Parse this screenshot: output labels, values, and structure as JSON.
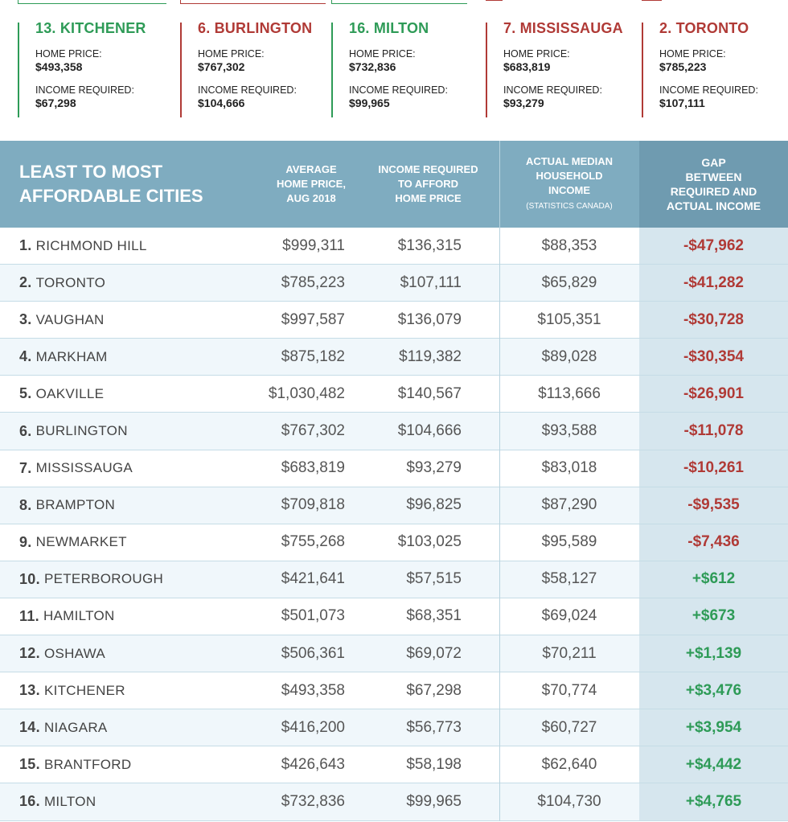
{
  "cards": [
    {
      "title": "13. KITCHENER",
      "home_label": "HOME PRICE:",
      "home": "$493,358",
      "income_label": "INCOME REQUIRED:",
      "income": "$67,298",
      "color": "#2e9b57"
    },
    {
      "title": "6. BURLINGTON",
      "home_label": "HOME PRICE:",
      "home": "$767,302",
      "income_label": "INCOME REQUIRED:",
      "income": "$104,666",
      "color": "#b03a36"
    },
    {
      "title": "16. MILTON",
      "home_label": "HOME PRICE:",
      "home": "$732,836",
      "income_label": "INCOME REQUIRED:",
      "income": "$99,965",
      "color": "#2e9b57"
    },
    {
      "title": "7. MISSISSAUGA",
      "home_label": "HOME PRICE:",
      "home": "$683,819",
      "income_label": "INCOME REQUIRED:",
      "income": "$93,279",
      "color": "#b03a36"
    },
    {
      "title": "2. TORONTO",
      "home_label": "HOME PRICE:",
      "home": "$785,223",
      "income_label": "INCOME REQUIRED:",
      "income": "$107,111",
      "color": "#b03a36"
    }
  ],
  "table": {
    "headers": {
      "city_line1": "LEAST TO MOST",
      "city_line2": "AFFORDABLE CITIES",
      "price_l1": "AVERAGE",
      "price_l2": "HOME PRICE,",
      "price_l3": "AUG 2018",
      "req_l1": "INCOME REQUIRED",
      "req_l2": "TO AFFORD",
      "req_l3": "HOME PRICE",
      "act_l1": "ACTUAL MEDIAN",
      "act_l2": "HOUSEHOLD",
      "act_l3": "INCOME",
      "act_l4": "(STATISTICS CANADA)",
      "gap_l1": "GAP",
      "gap_l2": "BETWEEN",
      "gap_l3": "REQUIRED AND",
      "gap_l4": "ACTUAL INCOME"
    },
    "rows": [
      {
        "rank": "1.",
        "city": "RICHMOND HILL",
        "price": "$999,311",
        "required": "$136,315",
        "actual": "$88,353",
        "gap": "-$47,962"
      },
      {
        "rank": "2.",
        "city": "TORONTO",
        "price": "$785,223",
        "required": "$107,111",
        "actual": "$65,829",
        "gap": "-$41,282"
      },
      {
        "rank": "3.",
        "city": "VAUGHAN",
        "price": "$997,587",
        "required": "$136,079",
        "actual": "$105,351",
        "gap": "-$30,728"
      },
      {
        "rank": "4.",
        "city": "MARKHAM",
        "price": "$875,182",
        "required": "$119,382",
        "actual": "$89,028",
        "gap": "-$30,354"
      },
      {
        "rank": "5.",
        "city": "OAKVILLE",
        "price": "$1,030,482",
        "required": "$140,567",
        "actual": "$113,666",
        "gap": "-$26,901"
      },
      {
        "rank": "6.",
        "city": "BURLINGTON",
        "price": "$767,302",
        "required": "$104,666",
        "actual": "$93,588",
        "gap": "-$11,078"
      },
      {
        "rank": "7.",
        "city": "MISSISSAUGA",
        "price": "$683,819",
        "required": "$93,279",
        "actual": "$83,018",
        "gap": "-$10,261"
      },
      {
        "rank": "8.",
        "city": "BRAMPTON",
        "price": "$709,818",
        "required": "$96,825",
        "actual": "$87,290",
        "gap": "-$9,535"
      },
      {
        "rank": "9.",
        "city": "NEWMARKET",
        "price": "$755,268",
        "required": "$103,025",
        "actual": "$95,589",
        "gap": "-$7,436"
      },
      {
        "rank": "10.",
        "city": "PETERBOROUGH",
        "price": "$421,641",
        "required": "$57,515",
        "actual": "$58,127",
        "gap": "+$612"
      },
      {
        "rank": "11.",
        "city": "HAMILTON",
        "price": "$501,073",
        "required": "$68,351",
        "actual": "$69,024",
        "gap": "+$673"
      },
      {
        "rank": "12.",
        "city": "OSHAWA",
        "price": "$506,361",
        "required": "$69,072",
        "actual": "$70,211",
        "gap": "+$1,139"
      },
      {
        "rank": "13.",
        "city": "KITCHENER",
        "price": "$493,358",
        "required": "$67,298",
        "actual": "$70,774",
        "gap": "+$3,476"
      },
      {
        "rank": "14.",
        "city": "NIAGARA",
        "price": "$416,200",
        "required": "$56,773",
        "actual": "$60,727",
        "gap": "+$3,954"
      },
      {
        "rank": "15.",
        "city": "BRANTFORD",
        "price": "$426,643",
        "required": "$58,198",
        "actual": "$62,640",
        "gap": "+$4,442"
      },
      {
        "rank": "16.",
        "city": "MILTON",
        "price": "$732,836",
        "required": "$99,965",
        "actual": "$104,730",
        "gap": "+$4,765"
      }
    ]
  },
  "colors": {
    "negative": "#b03a36",
    "positive": "#2e9b57",
    "header": "#7facc0",
    "gap_header": "#6f9bb0",
    "gap_cell": "#d6e6ee"
  }
}
